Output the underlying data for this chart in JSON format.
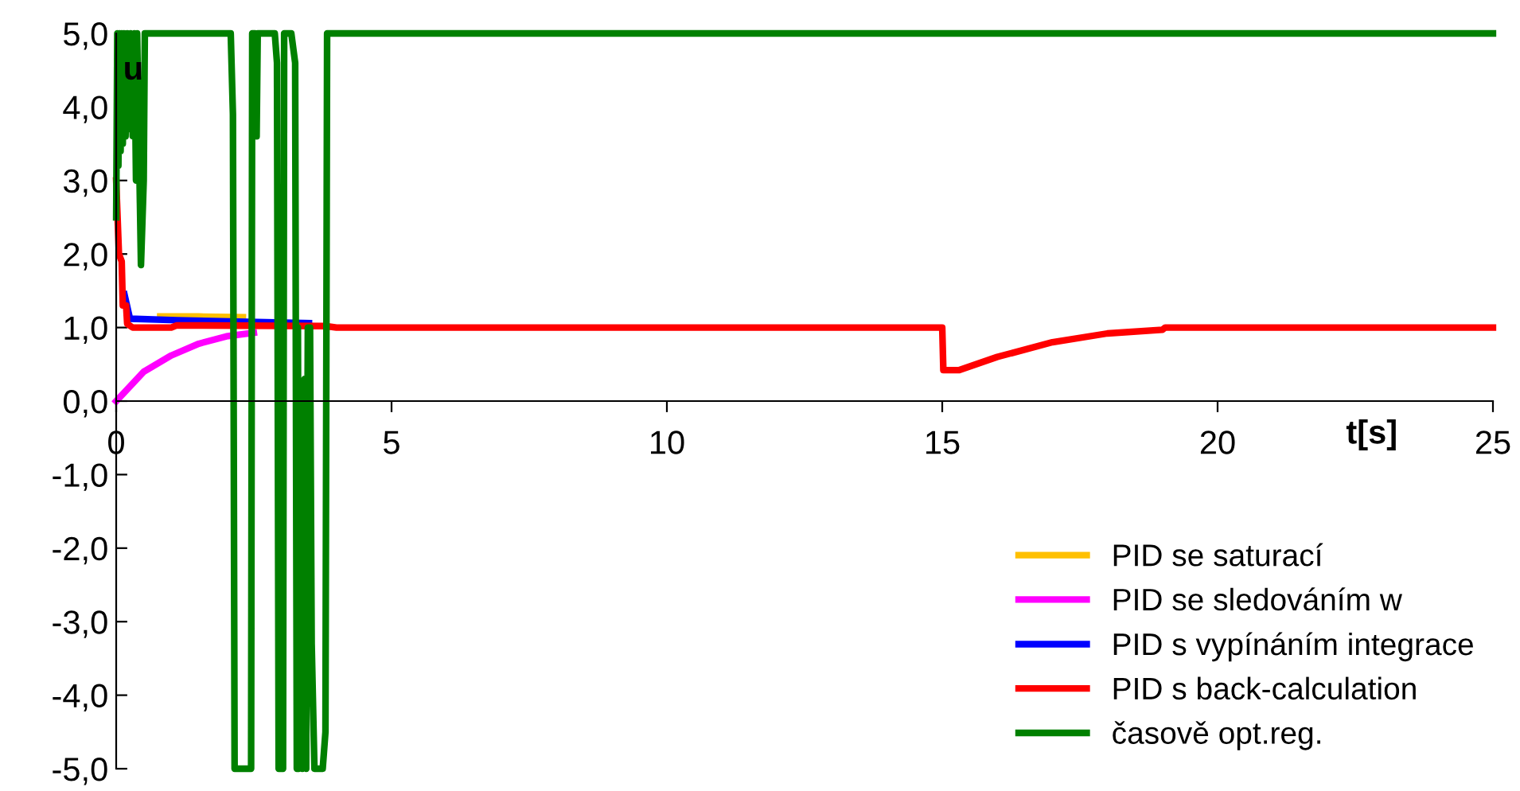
{
  "chart_data": {
    "type": "line",
    "xlabel": "t[s]",
    "ylabel": "u",
    "xlim": [
      0,
      25
    ],
    "ylim": [
      -5,
      5
    ],
    "xticks": [
      0,
      5,
      10,
      15,
      20,
      25
    ],
    "yticks": [
      {
        "value": -5,
        "label": "-5,0"
      },
      {
        "value": -4,
        "label": "-4,0"
      },
      {
        "value": -3,
        "label": "-3,0"
      },
      {
        "value": -2,
        "label": "-2,0"
      },
      {
        "value": -1,
        "label": "-1,0"
      },
      {
        "value": 0,
        "label": "0,0"
      },
      {
        "value": 1,
        "label": "1,0"
      },
      {
        "value": 2,
        "label": "2,0"
      },
      {
        "value": 3,
        "label": "3,0"
      },
      {
        "value": 4,
        "label": "4,0"
      },
      {
        "value": 5,
        "label": "5,0"
      }
    ],
    "grid": false,
    "legend": "bottom right",
    "marker": "none",
    "line_style": "solid",
    "series": [
      {
        "name": "PID se saturací",
        "color": "#ffc000",
        "x": [
          0.8,
          1.5,
          2.3
        ],
        "values": [
          1.15,
          1.15,
          1.14
        ]
      },
      {
        "name": "PID se sledováním w",
        "color": "#ff00ff",
        "x": [
          0,
          0.5,
          1,
          1.5,
          2,
          2.5
        ],
        "values": [
          0,
          0.4,
          0.62,
          0.78,
          0.88,
          0.93
        ]
      },
      {
        "name": "PID s vypínáním integrace",
        "color": "#0000ff",
        "x": [
          0.15,
          0.25,
          1.1,
          3.5
        ],
        "values": [
          1.45,
          1.12,
          1.1,
          1.06
        ]
      },
      {
        "name": "PID s back-calculation",
        "color": "#ff0000",
        "x": [
          0,
          0.05,
          0.1,
          0.12,
          0.18,
          0.2,
          0.3,
          1.0,
          1.1,
          3.8,
          4,
          15,
          15.02,
          15.3,
          16,
          17,
          18,
          19,
          19.05,
          25
        ],
        "values": [
          3.0,
          2.0,
          1.9,
          1.3,
          1.3,
          1.05,
          1.0,
          1.0,
          1.03,
          1.02,
          1.0,
          1.0,
          0.42,
          0.42,
          0.6,
          0.8,
          0.92,
          0.97,
          1.0,
          1.0
        ]
      },
      {
        "name": "časově opt.reg.",
        "color": "#008000",
        "x": [
          0,
          0.02,
          0.04,
          0.06,
          0.08,
          0.1,
          0.12,
          0.14,
          0.17,
          0.2,
          0.23,
          0.26,
          0.3,
          0.33,
          0.36,
          0.38,
          0.45,
          0.5,
          0.52,
          2.08,
          2.12,
          2.15,
          2.45,
          2.47,
          2.52,
          2.55,
          2.57,
          2.88,
          2.92,
          2.95,
          3.03,
          3.05,
          3.18,
          3.25,
          3.28,
          3.3,
          3.32,
          3.36,
          3.38,
          3.42,
          3.45,
          3.48,
          3.52,
          3.55,
          3.6,
          3.75,
          3.8,
          3.83,
          25
        ],
        "values": [
          2.5,
          5,
          3.2,
          5,
          3.4,
          5,
          3.5,
          5,
          3.6,
          5,
          3.7,
          5,
          3.6,
          5,
          3.0,
          5,
          1.85,
          3.0,
          5,
          5,
          3.9,
          -5,
          -5,
          5,
          5,
          3.6,
          5,
          5,
          4.6,
          -5,
          -5,
          5,
          5,
          4.6,
          -5,
          1.0,
          -5,
          -1.6,
          -5,
          0.3,
          -5,
          1.0,
          1.0,
          -3.3,
          -5,
          -5,
          -4.5,
          5,
          5
        ]
      }
    ]
  }
}
